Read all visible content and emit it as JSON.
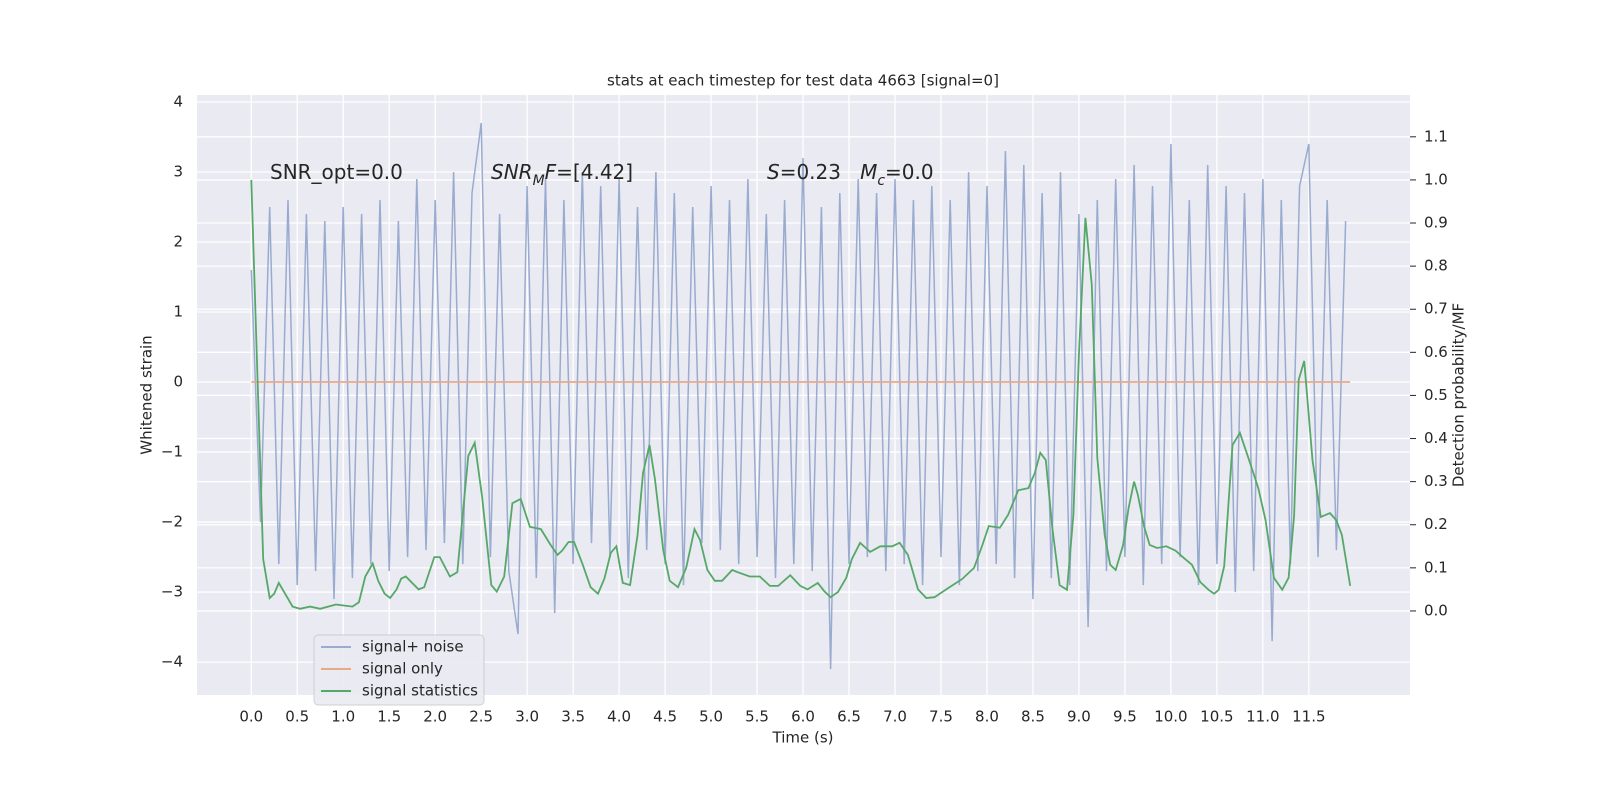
{
  "chart_data": {
    "type": "line",
    "title": "stats at each timestep for test data 4663 [signal=0]",
    "xlabel": "Time (s)",
    "ylabel": "Whitened strain",
    "y2label": "Detection probability/MF",
    "grid": true,
    "legend": "lower left",
    "xlim": [
      -0.59,
      12.6
    ],
    "ylim": [
      -4.47,
      4.1
    ],
    "y2lim": [
      -0.195,
      1.197
    ],
    "xticks": [
      {
        "value": 0,
        "label": "0.0"
      },
      {
        "value": 0.5,
        "label": "0.5"
      },
      {
        "value": 1,
        "label": "1.0"
      },
      {
        "value": 1.5,
        "label": "1.5"
      },
      {
        "value": 2,
        "label": "2.0"
      },
      {
        "value": 2.5,
        "label": "2.5"
      },
      {
        "value": 3,
        "label": "3.0"
      },
      {
        "value": 3.5,
        "label": "3.5"
      },
      {
        "value": 4,
        "label": "4.0"
      },
      {
        "value": 4.5,
        "label": "4.5"
      },
      {
        "value": 5,
        "label": "5.0"
      },
      {
        "value": 5.5,
        "label": "5.5"
      },
      {
        "value": 6,
        "label": "6.0"
      },
      {
        "value": 6.5,
        "label": "6.5"
      },
      {
        "value": 7,
        "label": "7.0"
      },
      {
        "value": 7.5,
        "label": "7.5"
      },
      {
        "value": 8,
        "label": "8.0"
      },
      {
        "value": 8.5,
        "label": "8.5"
      },
      {
        "value": 9,
        "label": "9.0"
      },
      {
        "value": 9.5,
        "label": "9.5"
      },
      {
        "value": 10,
        "label": "10.0"
      },
      {
        "value": 10.5,
        "label": "10.5"
      },
      {
        "value": 11,
        "label": "11.0"
      },
      {
        "value": 11.5,
        "label": "11.5"
      }
    ],
    "yticks": [
      {
        "value": -4,
        "label": "−4"
      },
      {
        "value": -3,
        "label": "−3"
      },
      {
        "value": -2,
        "label": "−2"
      },
      {
        "value": -1,
        "label": "−1"
      },
      0,
      1,
      2,
      3,
      4
    ],
    "y2ticks": [
      {
        "value": 0,
        "label": "0.0"
      },
      {
        "value": 0.1,
        "label": "0.1"
      },
      {
        "value": 0.2,
        "label": "0.2"
      },
      {
        "value": 0.3,
        "label": "0.3"
      },
      {
        "value": 0.4,
        "label": "0.4"
      },
      {
        "value": 0.5,
        "label": "0.5"
      },
      {
        "value": 0.6,
        "label": "0.6"
      },
      {
        "value": 0.7,
        "label": "0.7"
      },
      {
        "value": 0.8,
        "label": "0.8"
      },
      {
        "value": 0.9,
        "label": "0.9"
      },
      {
        "value": 1,
        "label": "1.0"
      },
      {
        "value": 1.1,
        "label": "1.1"
      }
    ],
    "annotations": [
      [
        {
          "text": "SNR_opt=0.0"
        }
      ],
      [
        {
          "text": "SNR",
          "italic": true
        },
        {
          "text": "M",
          "italic": true,
          "sub": true
        },
        {
          "text": "F",
          "italic": true
        },
        {
          "text": "=[4.42]"
        }
      ],
      [
        {
          "text": "S",
          "italic": true
        },
        {
          "text": "=0.23   "
        },
        {
          "text": "M",
          "italic": true
        },
        {
          "text": "c",
          "italic": true,
          "sub": true
        },
        {
          "text": "=0.0"
        }
      ]
    ],
    "series": [
      {
        "name": "signal+ noise",
        "color": "#9aabd0",
        "x": [
          0,
          0.1,
          0.2,
          0.3,
          0.4,
          0.5,
          0.6,
          0.7,
          0.8,
          0.9,
          1,
          1.1,
          1.2,
          1.3,
          1.4,
          1.5,
          1.6,
          1.7,
          1.8,
          1.9,
          2,
          2.1,
          2.2,
          2.3,
          2.4,
          2.5,
          2.6,
          2.7,
          2.8,
          2.9,
          3,
          3.1,
          3.2,
          3.3,
          3.4,
          3.5,
          3.6,
          3.7,
          3.8,
          3.9,
          4,
          4.1,
          4.2,
          4.3,
          4.4,
          4.5,
          4.6,
          4.7,
          4.8,
          4.9,
          5,
          5.1,
          5.2,
          5.3,
          5.4,
          5.5,
          5.6,
          5.7,
          5.8,
          5.9,
          6,
          6.1,
          6.2,
          6.3,
          6.4,
          6.5,
          6.6,
          6.7,
          6.8,
          6.9,
          7,
          7.1,
          7.2,
          7.3,
          7.4,
          7.5,
          7.6,
          7.7,
          7.8,
          7.9,
          8,
          8.1,
          8.2,
          8.3,
          8.4,
          8.5,
          8.6,
          8.7,
          8.8,
          8.9,
          9,
          9.1,
          9.2,
          9.3,
          9.4,
          9.5,
          9.6,
          9.7,
          9.8,
          9.9,
          10,
          10.1,
          10.2,
          10.3,
          10.4,
          10.5,
          10.6,
          10.7,
          10.8,
          10.9,
          11,
          11.1,
          11.2,
          11.3,
          11.4,
          11.5,
          11.6,
          11.7,
          11.8,
          11.9
        ],
        "values": [
          1.6,
          -2.0,
          2.5,
          -2.6,
          2.6,
          -2.9,
          2.4,
          -2.7,
          2.3,
          -3.1,
          2.5,
          -2.8,
          2.4,
          -2.6,
          2.6,
          -2.7,
          2.3,
          -2.5,
          2.9,
          -2.4,
          2.6,
          -2.3,
          3.0,
          -2.6,
          2.7,
          3.7,
          -2.5,
          2.4,
          -2.7,
          -3.6,
          2.8,
          -2.8,
          2.9,
          -3.3,
          2.6,
          -2.6,
          3.0,
          -2.3,
          2.8,
          -2.5,
          2.9,
          -2.8,
          2.5,
          -2.4,
          3.0,
          -2.6,
          2.7,
          -2.9,
          2.5,
          -2.3,
          2.8,
          -2.4,
          2.6,
          -2.6,
          2.9,
          -2.5,
          2.4,
          -2.8,
          2.6,
          -2.6,
          3.2,
          -2.7,
          2.5,
          -4.1,
          2.7,
          -2.6,
          2.9,
          -2.5,
          2.7,
          -2.7,
          2.9,
          -2.6,
          2.6,
          -2.9,
          2.8,
          -2.5,
          2.6,
          -2.9,
          3.0,
          -2.7,
          2.8,
          -2.6,
          3.3,
          -2.8,
          3.1,
          -3.1,
          2.7,
          -2.8,
          3.0,
          -2.9,
          2.4,
          -3.5,
          2.6,
          -2.7,
          2.9,
          -2.5,
          3.1,
          -2.9,
          2.8,
          -2.6,
          3.4,
          -2.5,
          2.6,
          -2.9,
          3.1,
          -2.6,
          2.8,
          -3.0,
          2.7,
          -2.7,
          2.9,
          -3.7,
          2.6,
          -2.6,
          2.8,
          3.4,
          -2.5,
          2.6,
          -2.4,
          2.3
        ]
      },
      {
        "name": "signal only",
        "color": "#e8a98a",
        "x": [
          0,
          11.95
        ],
        "values": [
          0,
          0
        ]
      },
      {
        "name": "signal statistics",
        "color": "#55a868",
        "axis": "y2",
        "x": [
          0,
          0.13,
          0.2,
          0.25,
          0.3,
          0.45,
          0.53,
          0.64,
          0.75,
          0.92,
          1.1,
          1.17,
          1.24,
          1.32,
          1.38,
          1.45,
          1.51,
          1.58,
          1.63,
          1.68,
          1.82,
          1.88,
          1.99,
          2.05,
          2.16,
          2.24,
          2.36,
          2.43,
          2.51,
          2.61,
          2.67,
          2.75,
          2.84,
          2.93,
          3.03,
          3.15,
          3.25,
          3.33,
          3.38,
          3.45,
          3.51,
          3.6,
          3.69,
          3.77,
          3.84,
          3.91,
          3.97,
          4.04,
          4.12,
          4.2,
          4.26,
          4.33,
          4.39,
          4.48,
          4.55,
          4.64,
          4.73,
          4.82,
          4.88,
          4.96,
          5.04,
          5.12,
          5.23,
          5.29,
          5.42,
          5.53,
          5.64,
          5.73,
          5.86,
          5.97,
          6.05,
          6.16,
          6.23,
          6.3,
          6.38,
          6.47,
          6.53,
          6.62,
          6.73,
          6.84,
          6.97,
          7.05,
          7.14,
          7.25,
          7.34,
          7.43,
          7.6,
          7.73,
          7.86,
          7.95,
          8.02,
          8.14,
          8.23,
          8.34,
          8.45,
          8.52,
          8.58,
          8.64,
          8.71,
          8.79,
          8.87,
          8.94,
          9.0,
          9.07,
          9.14,
          9.2,
          9.28,
          9.34,
          9.4,
          9.48,
          9.54,
          9.6,
          9.64,
          9.71,
          9.77,
          9.85,
          9.95,
          10.05,
          10.14,
          10.23,
          10.32,
          10.41,
          10.47,
          10.52,
          10.58,
          10.67,
          10.75,
          10.84,
          10.95,
          11.03,
          11.12,
          11.21,
          11.28,
          11.34,
          11.39,
          11.45,
          11.54,
          11.63,
          11.73,
          11.8,
          11.86,
          11.95
        ],
        "values": [
          1.0,
          0.12,
          0.03,
          0.04,
          0.065,
          0.01,
          0.005,
          0.01,
          0.005,
          0.015,
          0.01,
          0.02,
          0.08,
          0.11,
          0.07,
          0.04,
          0.03,
          0.05,
          0.075,
          0.08,
          0.05,
          0.055,
          0.125,
          0.125,
          0.08,
          0.09,
          0.36,
          0.39,
          0.265,
          0.06,
          0.045,
          0.08,
          0.25,
          0.26,
          0.195,
          0.19,
          0.155,
          0.13,
          0.14,
          0.16,
          0.16,
          0.11,
          0.055,
          0.04,
          0.075,
          0.135,
          0.15,
          0.065,
          0.06,
          0.175,
          0.32,
          0.385,
          0.305,
          0.14,
          0.07,
          0.055,
          0.1,
          0.19,
          0.165,
          0.095,
          0.07,
          0.07,
          0.095,
          0.09,
          0.08,
          0.08,
          0.058,
          0.058,
          0.083,
          0.058,
          0.05,
          0.065,
          0.046,
          0.032,
          0.044,
          0.077,
          0.12,
          0.158,
          0.137,
          0.15,
          0.15,
          0.158,
          0.13,
          0.05,
          0.03,
          0.032,
          0.056,
          0.074,
          0.1,
          0.153,
          0.197,
          0.193,
          0.223,
          0.28,
          0.285,
          0.32,
          0.367,
          0.35,
          0.193,
          0.06,
          0.049,
          0.223,
          0.594,
          0.912,
          0.756,
          0.355,
          0.176,
          0.107,
          0.095,
          0.153,
          0.239,
          0.3,
          0.27,
          0.195,
          0.153,
          0.146,
          0.15,
          0.14,
          0.123,
          0.107,
          0.067,
          0.049,
          0.04,
          0.049,
          0.104,
          0.385,
          0.413,
          0.357,
          0.285,
          0.21,
          0.077,
          0.049,
          0.077,
          0.22,
          0.536,
          0.58,
          0.35,
          0.218,
          0.227,
          0.21,
          0.176,
          0.058
        ]
      }
    ]
  }
}
